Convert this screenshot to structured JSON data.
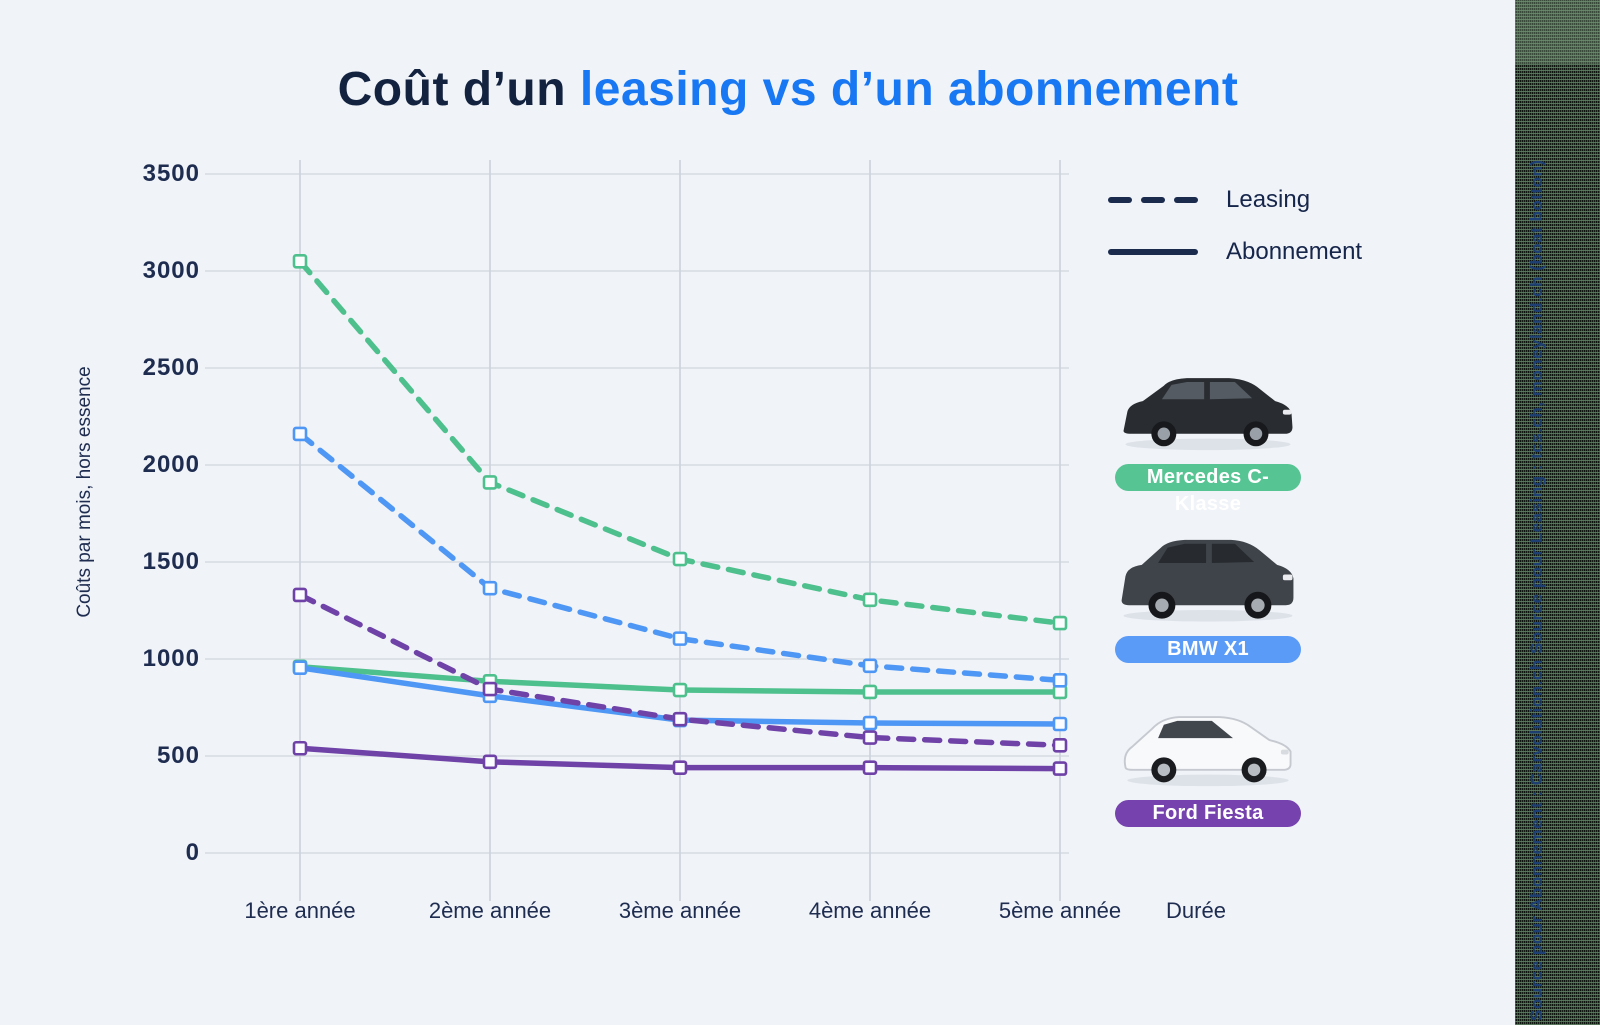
{
  "title": {
    "dark": "Coût d’un ",
    "blue": "leasing vs d’un abonnement"
  },
  "legend": {
    "entries": [
      {
        "label": "Leasing",
        "style": "dashed"
      },
      {
        "label": "Abonnement",
        "style": "solid"
      }
    ],
    "swatch_color": "#1b2b4e"
  },
  "chart_data": {
    "type": "line",
    "title": "Coût d’un leasing vs d’un abonnement",
    "xlabel": "Durée",
    "ylabel": "Coûts par mois, hors essence",
    "categories": [
      "1ère année",
      "2ème année",
      "3ème année",
      "4ème année",
      "5ème année"
    ],
    "yticks": [
      0,
      500,
      1000,
      1500,
      2000,
      2500,
      3000,
      3500
    ],
    "ylim": [
      0,
      3500
    ],
    "grid": true,
    "legend_position": "top-right",
    "series": [
      {
        "id": "mercedes-abonnement",
        "name": "Mercedes C-Klasse — Abonnement",
        "vehicle": "Mercedes C-Klasse",
        "contract": "Abonnement",
        "style": "solid",
        "color": "#4ec08d",
        "values": [
          960,
          885,
          840,
          830,
          830
        ]
      },
      {
        "id": "bmw-abonnement",
        "name": "BMW X1 — Abonnement",
        "vehicle": "BMW X1",
        "contract": "Abonnement",
        "style": "solid",
        "color": "#4f97f4",
        "values": [
          955,
          810,
          685,
          670,
          665
        ]
      },
      {
        "id": "ford-abonnement",
        "name": "Ford Fiesta — Abonnement",
        "vehicle": "Ford Fiesta",
        "contract": "Abonnement",
        "style": "solid",
        "color": "#6f42a8",
        "values": [
          540,
          470,
          440,
          440,
          435
        ]
      },
      {
        "id": "mercedes-leasing",
        "name": "Mercedes C-Klasse — Leasing",
        "vehicle": "Mercedes C-Klasse",
        "contract": "Leasing",
        "style": "dashed",
        "color": "#4ec08d",
        "values": [
          3050,
          1910,
          1515,
          1305,
          1185
        ]
      },
      {
        "id": "bmw-leasing",
        "name": "BMW X1 — Leasing",
        "vehicle": "BMW X1",
        "contract": "Leasing",
        "style": "dashed",
        "color": "#4f97f4",
        "values": [
          2160,
          1365,
          1105,
          965,
          890
        ]
      },
      {
        "id": "ford-leasing",
        "name": "Ford Fiesta — Leasing",
        "vehicle": "Ford Fiesta",
        "contract": "Leasing",
        "style": "dashed",
        "color": "#6f42a8",
        "values": [
          1330,
          845,
          690,
          595,
          555
        ]
      }
    ]
  },
  "vehicles": [
    {
      "label": "Mercedes C-Klasse",
      "pill_color": "#57c494"
    },
    {
      "label": "BMW X1",
      "pill_color": "#5b9bf8"
    },
    {
      "label": "Ford Fiesta",
      "pill_color": "#7642ae"
    }
  ],
  "source_note": "Source pour Abonnement : Carvolution.ch      Source pour Leasing : tcs.ch, moneyland.ch (boat botton)",
  "colors": {
    "background": "#f0f3f8",
    "title_dark": "#13233f",
    "title_blue": "#1877f2",
    "axis_text": "#1e2c50",
    "gridline": "#d5dae1",
    "green": "#4ec08d",
    "blue": "#4f97f4",
    "purple": "#6f42a8",
    "legend_navy": "#1b2b4e"
  }
}
